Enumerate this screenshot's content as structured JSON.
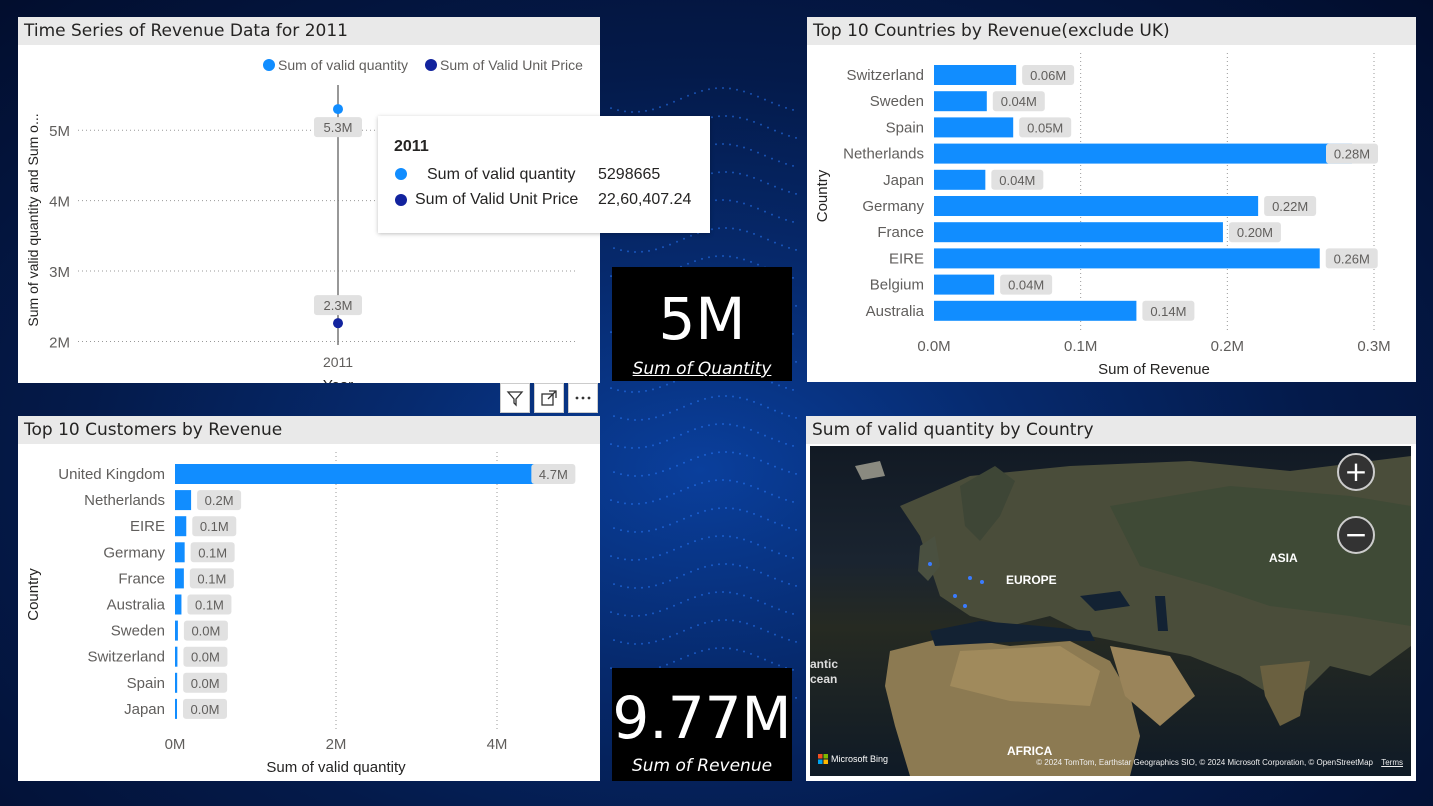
{
  "panels": {
    "timeseries": {
      "title": "Time Series of Revenue Data for 2011"
    },
    "countries": {
      "title": "Top 10 Countries by Revenue(exclude UK)"
    },
    "customers": {
      "title": "Top 10 Customers by Revenue"
    },
    "map": {
      "title": "Sum of valid quantity by Country"
    }
  },
  "cards": {
    "quantity": {
      "value": "5M",
      "label": "Sum of Quantity"
    },
    "revenue": {
      "value": "9.77M",
      "label": "Sum of Revenue"
    }
  },
  "tooltip": {
    "header": "2011",
    "rows": [
      {
        "label": "Sum of valid quantity",
        "value": "5298665",
        "color": "#118dff"
      },
      {
        "label": "Sum of Valid Unit Price",
        "value": "22,60,407.24",
        "color": "#12239e"
      }
    ]
  },
  "map": {
    "labels": [
      "EUROPE",
      "ASIA",
      "AFRICA",
      "antic",
      "cean"
    ],
    "zoom_in": "+",
    "zoom_out": "−",
    "attribution": "© 2024 TomTom, Earthstar Geographics SIO, © 2024 Microsoft Corporation, © OpenStreetMap",
    "terms": "Terms",
    "bing": "Microsoft Bing"
  },
  "chart_data": [
    {
      "type": "line",
      "title": "Time Series of Revenue Data for 2011",
      "xlabel": "Year",
      "ylabel": "Sum of valid quantity and Sum o...",
      "categories": [
        "2011"
      ],
      "yticks": [
        "2M",
        "3M",
        "4M",
        "5M"
      ],
      "ylim": [
        1.95,
        5.5
      ],
      "series": [
        {
          "name": "Sum of valid quantity",
          "values": [
            5.3
          ],
          "data_label": "5.3M",
          "color": "#118dff"
        },
        {
          "name": "Sum of Valid Unit Price",
          "values": [
            2.26
          ],
          "data_label": "2.3M",
          "color": "#12239e"
        }
      ],
      "legend": "top-right",
      "grid": true
    },
    {
      "type": "bar",
      "orientation": "horizontal",
      "title": "Top 10 Countries by Revenue(exclude UK)",
      "xlabel": "Sum of Revenue",
      "ylabel": "Country",
      "categories": [
        "Switzerland",
        "Sweden",
        "Spain",
        "Netherlands",
        "Japan",
        "Germany",
        "France",
        "EIRE",
        "Belgium",
        "Australia"
      ],
      "values": [
        0.056,
        0.036,
        0.054,
        0.285,
        0.035,
        0.221,
        0.197,
        0.263,
        0.041,
        0.138
      ],
      "data_labels": [
        "0.06M",
        "0.04M",
        "0.05M",
        "0.28M",
        "0.04M",
        "0.22M",
        "0.20M",
        "0.26M",
        "0.04M",
        "0.14M"
      ],
      "xticks": [
        "0.0M",
        "0.1M",
        "0.2M",
        "0.3M"
      ],
      "xlim": [
        0,
        0.3
      ],
      "color": "#118dff",
      "grid": true
    },
    {
      "type": "bar",
      "orientation": "horizontal",
      "title": "Top 10 Customers by Revenue",
      "xlabel": "Sum of valid quantity",
      "ylabel": "Country",
      "categories": [
        "United Kingdom",
        "Netherlands",
        "EIRE",
        "Germany",
        "France",
        "Australia",
        "Sweden",
        "Switzerland",
        "Spain",
        "Japan"
      ],
      "values": [
        4.7,
        0.2,
        0.14,
        0.12,
        0.11,
        0.08,
        0.036,
        0.03,
        0.027,
        0.025
      ],
      "data_labels": [
        "4.7M",
        "0.2M",
        "0.1M",
        "0.1M",
        "0.1M",
        "0.1M",
        "0.0M",
        "0.0M",
        "0.0M",
        "0.0M"
      ],
      "xticks": [
        "0M",
        "2M",
        "4M"
      ],
      "xlim": [
        0,
        4
      ],
      "color": "#118dff",
      "grid": true
    }
  ]
}
